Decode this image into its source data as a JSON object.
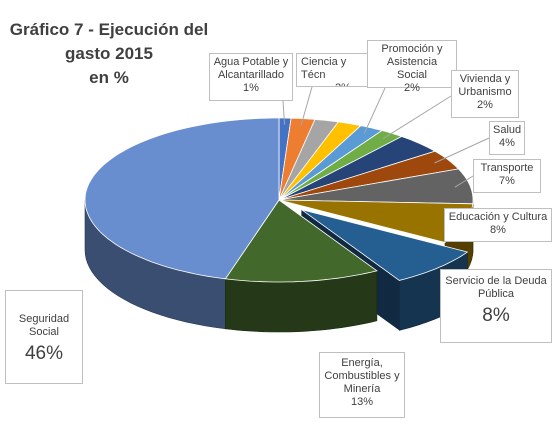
{
  "chart_data": {
    "type": "pie",
    "title_lines": [
      "Gráfico 7 - Ejecución del",
      "gasto 2015",
      "en %"
    ],
    "slices": [
      {
        "name_lines": [
          "Agua Potable y",
          "Alcantarillado"
        ],
        "label": "1%",
        "value": 1,
        "color": "#4472c4"
      },
      {
        "name_lines": [
          "Ciencia y Técn"
        ],
        "label": "2%",
        "value": 2,
        "color": "#ed7d31"
      },
      {
        "name_lines": [],
        "label": "",
        "value": 2,
        "color": "#a5a5a5"
      },
      {
        "name_lines": [],
        "label": "",
        "value": 2,
        "color": "#ffc000"
      },
      {
        "name_lines": [
          "Promoción y",
          "Asistencia Social"
        ],
        "label": "2%",
        "value": 2,
        "color": "#5b9bd5"
      },
      {
        "name_lines": [
          "Vivienda y",
          "Urbanismo"
        ],
        "label": "2%",
        "value": 2,
        "color": "#70ad47"
      },
      {
        "name_lines": [],
        "label": "",
        "value": 4,
        "color": "#264478"
      },
      {
        "name_lines": [
          "Salud"
        ],
        "label": "4%",
        "value": 4,
        "color": "#9e480e"
      },
      {
        "name_lines": [
          "Transporte"
        ],
        "label": "7%",
        "value": 7,
        "color": "#636363"
      },
      {
        "name_lines": [
          "Educación y Cultura"
        ],
        "label": "8%",
        "value": 8,
        "color": "#997300"
      },
      {
        "name_lines": [
          "Servicio de la Deuda",
          "Pública"
        ],
        "label": "8%",
        "value": 8,
        "color": "#255e91",
        "exploded": true
      },
      {
        "name_lines": [
          "Energía,",
          "Combustibles y",
          "Minería"
        ],
        "label": "13%",
        "value": 13,
        "color": "#43682b"
      },
      {
        "name_lines": [
          "Seguridad",
          "Social"
        ],
        "label": "46%",
        "value": 46,
        "color": "#698ed0"
      }
    ]
  }
}
